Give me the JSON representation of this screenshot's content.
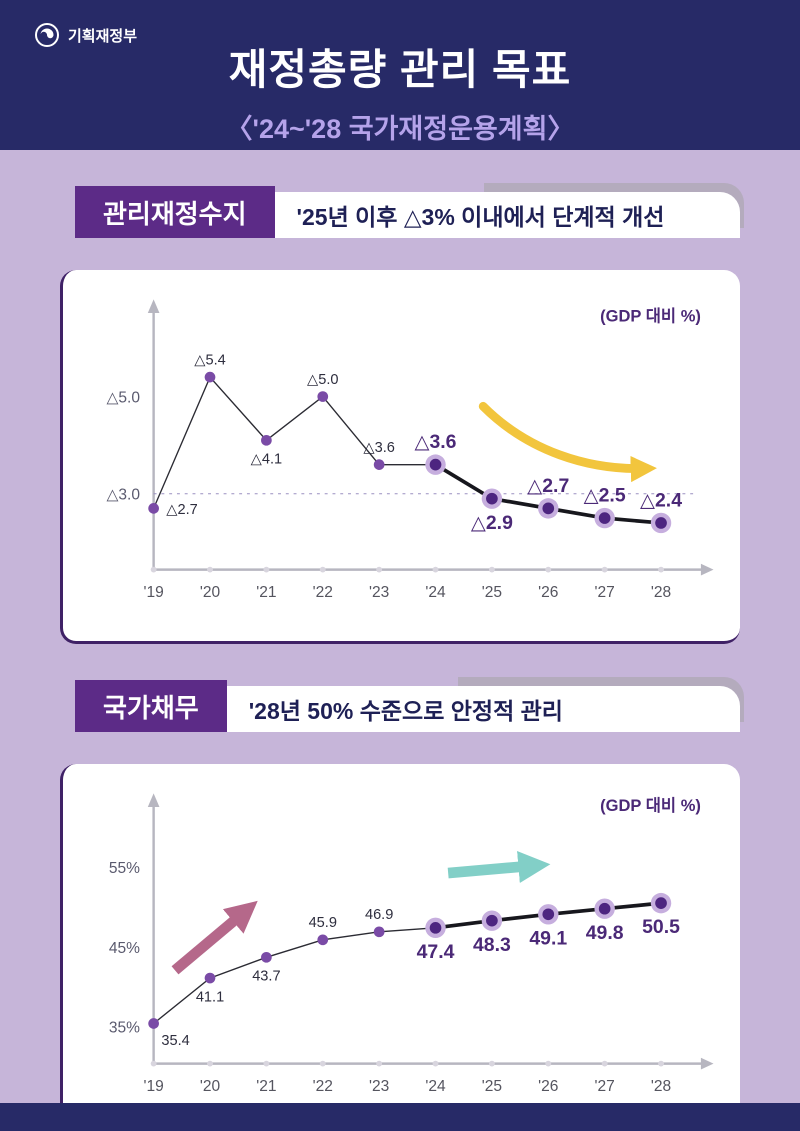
{
  "header": {
    "agency": "기획재정부",
    "title": "재정총량 관리 목표",
    "subtitle": "〈'24~'28 국가재정운용계획〉"
  },
  "sections": [
    {
      "label": "관리재정수지",
      "headline": "'25년 이후 △3% 이내에서 단계적 개선"
    },
    {
      "label": "국가채무",
      "headline": "'28년 50% 수준으로 안정적 관리"
    }
  ],
  "colors": {
    "navy": "#272a67",
    "background": "#c6b5d9",
    "purple": "#5c2b87",
    "accent_text": "#4b2977",
    "yellow_arrow": "#f2c53d",
    "pink_arrow": "#b5688a",
    "teal_arrow": "#82cfc7"
  },
  "chart_data": [
    {
      "type": "line",
      "title": "관리재정수지",
      "unit_label": "(GDP 대비 %)",
      "categories": [
        "'19",
        "'20",
        "'21",
        "'22",
        "'23",
        "'24",
        "'25",
        "'26",
        "'27",
        "'28"
      ],
      "values": [
        2.7,
        5.4,
        4.1,
        5.0,
        3.6,
        3.6,
        2.9,
        2.7,
        2.5,
        2.4
      ],
      "labels": [
        "△2.7",
        "△5.4",
        "△4.1",
        "△5.0",
        "△3.6",
        "△3.6",
        "△2.9",
        "△2.7",
        "△2.5",
        "△2.4"
      ],
      "emphasis_from_index": 5,
      "y_ticks": [
        {
          "value": 5.0,
          "label": "△5.0"
        },
        {
          "value": 3.0,
          "label": "△3.0"
        }
      ],
      "dashed_line_at": 3.0,
      "ylim": [
        2.0,
        6.0
      ],
      "grid": false,
      "label_positions": [
        "right",
        "above",
        "below",
        "above",
        "above",
        "above",
        "below",
        "above",
        "above",
        "above"
      ],
      "trend_arrow": {
        "direction": "down-right",
        "color": "#f2c53d"
      }
    },
    {
      "type": "line",
      "title": "국가채무",
      "unit_label": "(GDP 대비 %)",
      "categories": [
        "'19",
        "'20",
        "'21",
        "'22",
        "'23",
        "'24",
        "'25",
        "'26",
        "'27",
        "'28"
      ],
      "values": [
        35.4,
        41.1,
        43.7,
        45.9,
        46.9,
        47.4,
        48.3,
        49.1,
        49.8,
        50.5
      ],
      "labels": [
        "35.4",
        "41.1",
        "43.7",
        "45.9",
        "46.9",
        "47.4",
        "48.3",
        "49.1",
        "49.8",
        "50.5"
      ],
      "emphasis_from_index": 5,
      "y_ticks": [
        {
          "value": 55,
          "label": "55%"
        },
        {
          "value": 45,
          "label": "45%"
        },
        {
          "value": 35,
          "label": "35%"
        }
      ],
      "dashed_line_at": null,
      "ylim": [
        30,
        58
      ],
      "grid": false,
      "label_positions": [
        "below-right",
        "below",
        "below",
        "above",
        "above",
        "below",
        "below",
        "below",
        "below",
        "below"
      ],
      "trend_arrows": [
        {
          "direction": "up-right",
          "color": "#b5688a"
        },
        {
          "direction": "right",
          "color": "#82cfc7"
        }
      ]
    }
  ]
}
